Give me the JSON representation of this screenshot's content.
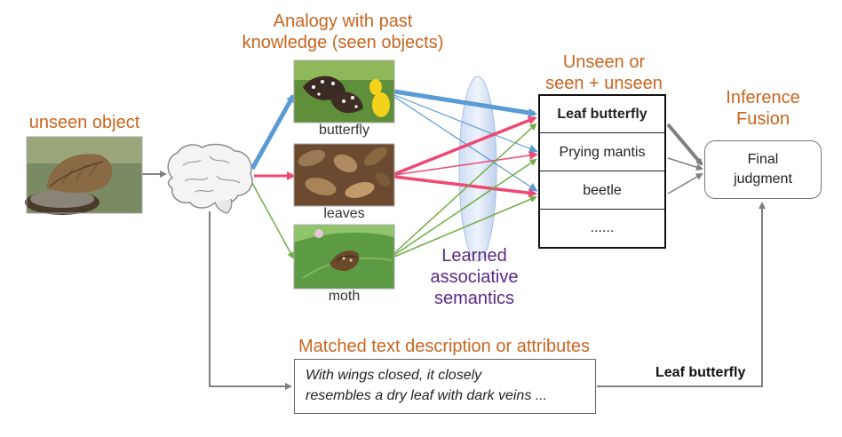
{
  "header_analogy": [
    "Analogy with past",
    "knowledge (seen objects)"
  ],
  "header_unseen_object": "unseen object",
  "header_candidates": [
    "Unseen or",
    "seen + unseen"
  ],
  "header_inference": [
    "Inference",
    "Fusion"
  ],
  "seen_objects": [
    {
      "caption": "butterfly",
      "image_icon": "butterfly-photo"
    },
    {
      "caption": "leaves",
      "image_icon": "leaves-photo"
    },
    {
      "caption": "moth",
      "image_icon": "moth-photo"
    }
  ],
  "unseen_image_icon": "leaf-butterfly-photo",
  "brain_icon": "brain-icon",
  "lens_label": [
    "Learned",
    "associative",
    "semantics"
  ],
  "candidates": [
    "Leaf butterfly",
    "Prying mantis",
    "beetle",
    "......"
  ],
  "final_box": [
    "Final",
    "judgment"
  ],
  "matched_header": "Matched text description or attributes",
  "description": [
    "With wings closed, it closely",
    "resembles a dry leaf with dark veins ..."
  ],
  "text_result": "Leaf butterfly",
  "colors": {
    "orange_text": "#c9651f",
    "purple_text": "#5b2a86",
    "blue_arrow": "#5b9bd5",
    "red_arrow": "#ec4a73",
    "green_arrow": "#70ad47",
    "gray_arrow": "#7f7f7f"
  }
}
